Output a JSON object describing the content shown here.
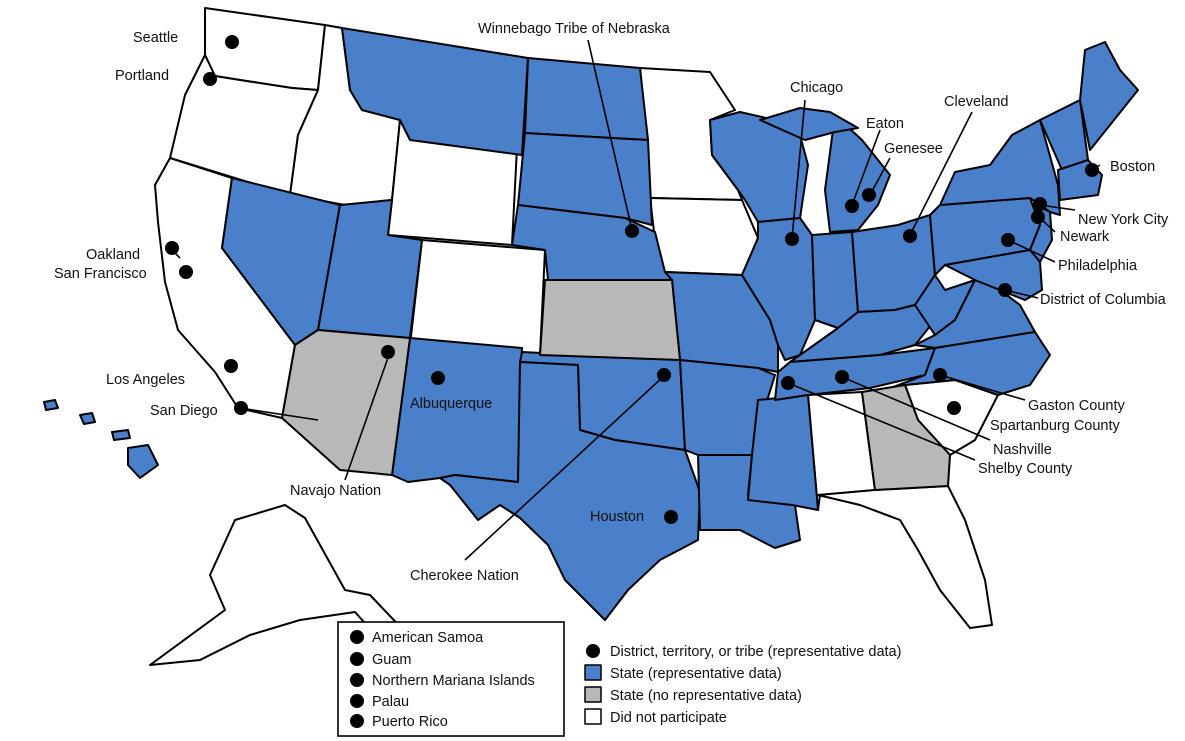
{
  "colors": {
    "representative": "#4a7fc9",
    "no_representative": "#b8b8b8",
    "did_not_participate": "#ffffff",
    "outline": "#000000",
    "site_dot": "#000000"
  },
  "legend": {
    "site": "District, territory, or tribe (representative data)",
    "state_representative": "State (representative data)",
    "state_no_representative": "State (no representative data)",
    "did_not_participate": "Did not participate"
  },
  "territories": [
    "American Samoa",
    "Guam",
    "Northern Mariana Islands",
    "Palau",
    "Puerto Rico"
  ],
  "sites": {
    "seattle": "Seattle",
    "portland": "Portland",
    "oakland": "Oakland",
    "san_francisco": "San Francisco",
    "los_angeles": "Los Angeles",
    "san_diego": "San Diego",
    "navajo_nation": "Navajo Nation",
    "albuquerque": "Albuquerque",
    "cherokee_nation": "Cherokee Nation",
    "houston": "Houston",
    "winnebago": "Winnebago Tribe of Nebraska",
    "chicago": "Chicago",
    "eaton": "Eaton",
    "genesee": "Genesee",
    "cleveland": "Cleveland",
    "boston": "Boston",
    "new_york_city": "New York City",
    "newark": "Newark",
    "philadelphia": "Philadelphia",
    "district_of_columbia": "District of Columbia",
    "gaston_county": "Gaston County",
    "spartanburg_county": "Spartanburg County",
    "nashville": "Nashville",
    "shelby_county": "Shelby County"
  }
}
